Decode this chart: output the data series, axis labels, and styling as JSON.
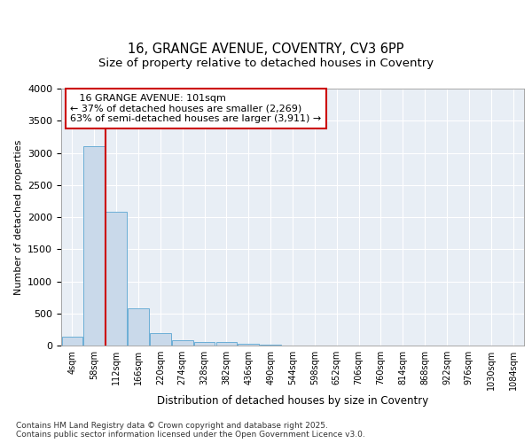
{
  "title_line1": "16, GRANGE AVENUE, COVENTRY, CV3 6PP",
  "title_line2": "Size of property relative to detached houses in Coventry",
  "xlabel": "Distribution of detached houses by size in Coventry",
  "ylabel": "Number of detached properties",
  "bin_labels": [
    "4sqm",
    "58sqm",
    "112sqm",
    "166sqm",
    "220sqm",
    "274sqm",
    "328sqm",
    "382sqm",
    "436sqm",
    "490sqm",
    "544sqm",
    "598sqm",
    "652sqm",
    "706sqm",
    "760sqm",
    "814sqm",
    "868sqm",
    "922sqm",
    "976sqm",
    "1030sqm",
    "1084sqm"
  ],
  "bar_values": [
    140,
    3100,
    2080,
    580,
    200,
    80,
    60,
    50,
    30,
    10,
    0,
    0,
    0,
    0,
    0,
    0,
    0,
    0,
    0,
    0,
    0
  ],
  "bar_color": "#c9d9ea",
  "bar_edgecolor": "#6baed6",
  "ylim": [
    0,
    4000
  ],
  "yticks": [
    0,
    500,
    1000,
    1500,
    2000,
    2500,
    3000,
    3500,
    4000
  ],
  "red_line_x": 2.0,
  "annotation_text_line1": "   16 GRANGE AVENUE: 101sqm",
  "annotation_text_line2": "← 37% of detached houses are smaller (2,269)",
  "annotation_text_line3": "63% of semi-detached houses are larger (3,911) →",
  "annotation_box_color": "#cc0000",
  "plot_bg_color": "#e8eef5",
  "fig_bg_color": "#ffffff",
  "grid_color": "#ffffff",
  "footer_text": "Contains HM Land Registry data © Crown copyright and database right 2025.\nContains public sector information licensed under the Open Government Licence v3.0.",
  "title_fontsize": 10.5,
  "subtitle_fontsize": 9.5,
  "annotation_fontsize": 8,
  "ylabel_fontsize": 8,
  "xlabel_fontsize": 8.5,
  "footer_fontsize": 6.5
}
